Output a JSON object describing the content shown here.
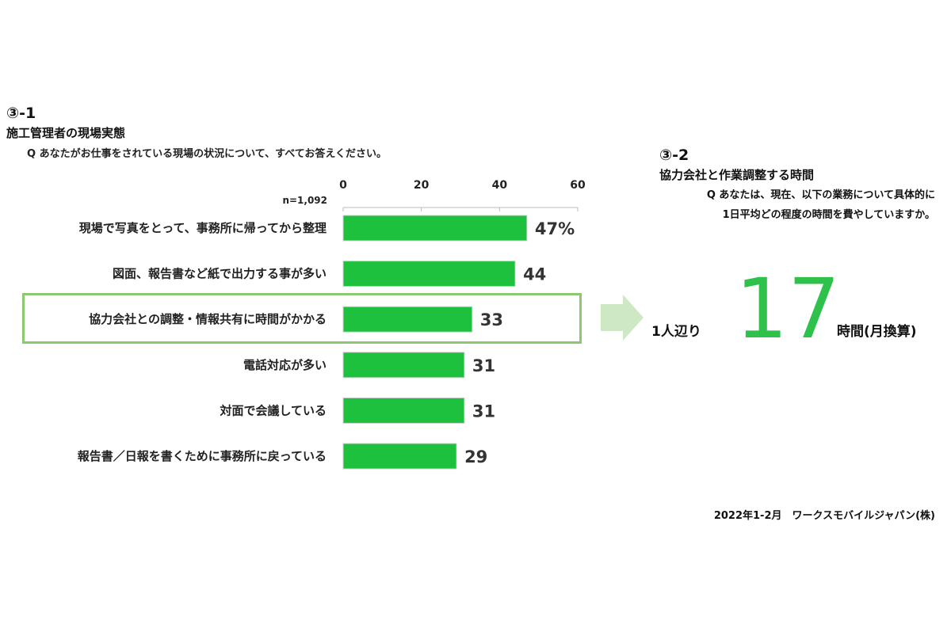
{
  "left": {
    "section_number": "③-1",
    "title": "施工管理者の現場実態",
    "question": "Q あなたがお仕事をされている現場の状況について、すべてお答えください。",
    "n_label": "n=1,092"
  },
  "right": {
    "section_number": "③-2",
    "title": "協力会社と作業調整する時間",
    "question_line1": "Q あなたは、現在、以下の業務について具体的に",
    "question_line2": "1日平均どの程度の時間を費やしていますか。",
    "prefix": "1人辺り",
    "value": "17",
    "unit": "時間(月換算)"
  },
  "footer": "2022年1-2月　ワークスモバイルジャパン(株)",
  "colors": {
    "bar": "#1ec13e",
    "highlight": "#8cc870",
    "arrow": "#cfe8c4",
    "big_number": "#2ec24d"
  },
  "chart_data": {
    "type": "bar",
    "orientation": "horizontal",
    "categories": [
      "現場で写真をとって、事務所に帰ってから整理",
      "図面、報告書など紙で出力する事が多い",
      "協力会社との調整・情報共有に時間がかかる",
      "電話対応が多い",
      "対面で会議している",
      "報告書／日報を書くために事務所に戻っている"
    ],
    "values": [
      47,
      44,
      33,
      31,
      31,
      29
    ],
    "value_labels": [
      "47%",
      "44",
      "33",
      "31",
      "31",
      "29"
    ],
    "xlim": [
      0,
      60
    ],
    "xticks": [
      0,
      20,
      40,
      60
    ],
    "xtick_labels": [
      "0",
      "20",
      "40",
      "60"
    ],
    "highlighted_category_index": 2,
    "grid": false,
    "legend": "none"
  }
}
